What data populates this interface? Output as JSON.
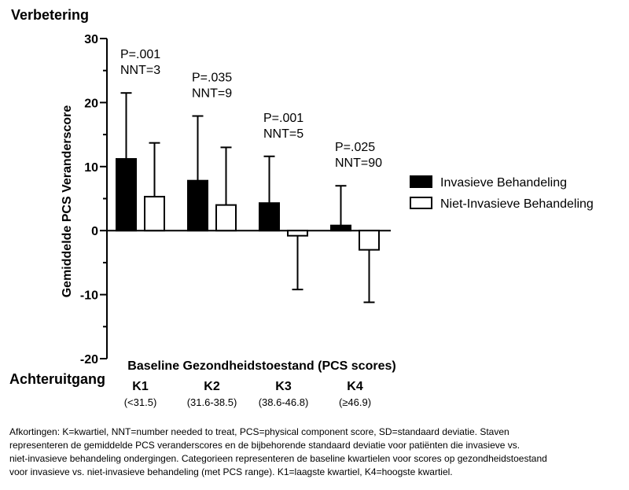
{
  "chart_data": {
    "type": "bar",
    "top_label": "Verbetering",
    "bottom_label": "Achteruitgang",
    "ylabel": "Gemiddelde PCS Veranderscore",
    "xlabel": "Baseline Gezondheidstoestand (PCS scores)",
    "ylim": [
      -20,
      30
    ],
    "yticks": [
      -20,
      -10,
      0,
      10,
      20,
      30
    ],
    "categories": [
      "K1",
      "K2",
      "K3",
      "K4"
    ],
    "category_ranges": [
      "(<31.5)",
      "(31.6-38.5)",
      "(38.6-46.8)",
      "(≥46.9)"
    ],
    "series": [
      {
        "name": "Invasieve Behandeling",
        "fill": "#000000",
        "values": [
          11.2,
          7.8,
          4.3,
          0.8
        ],
        "sd": [
          10.3,
          10.1,
          7.3,
          6.2
        ]
      },
      {
        "name": "Niet-Invasieve Behandeling",
        "fill": "#ffffff",
        "values": [
          5.3,
          4.0,
          -0.8,
          -3.0
        ],
        "sd": [
          8.4,
          9.0,
          8.4,
          8.2
        ]
      }
    ],
    "annotations": [
      {
        "p": "P=.001",
        "nnt": "NNT=3"
      },
      {
        "p": "P=.035",
        "nnt": "NNT=9"
      },
      {
        "p": "P=.001",
        "nnt": "NNT=5"
      },
      {
        "p": "P=.025",
        "nnt": "NNT=90"
      }
    ],
    "legend_position": "right"
  },
  "caption": [
    "Afkortingen: K=kwartiel, NNT=number needed to treat, PCS=physical component score, SD=standaard deviatie. Staven",
    "representeren de gemiddelde PCS veranderscores en de bijbehorende standaard deviatie voor patiënten die invasieve vs.",
    "niet-invasieve behandeling ondergingen. Categorieen representeren de baseline kwartielen voor scores op gezondheidstoestand",
    "voor invasieve vs. niet-invasieve behandeling (met PCS range). K1=laagste kwartiel, K4=hoogste kwartiel."
  ]
}
